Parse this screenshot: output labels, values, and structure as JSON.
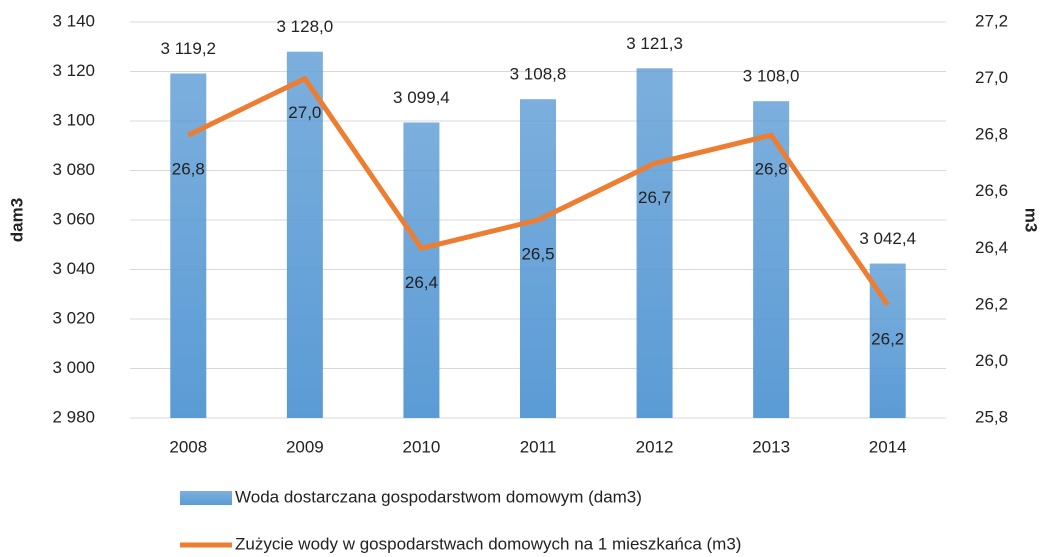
{
  "chart_data": {
    "type": "bar",
    "categories": [
      "2008",
      "2009",
      "2010",
      "2011",
      "2012",
      "2013",
      "2014"
    ],
    "series": [
      {
        "name": "Woda dostarczana gospodarstwom domowym (dam3)",
        "type": "bar",
        "color": "#5b9bd5",
        "values": [
          3119.2,
          3128.0,
          3099.4,
          3108.8,
          3121.3,
          3108.0,
          3042.4
        ],
        "value_labels": [
          "3 119,2",
          "3 128,0",
          "3 099,4",
          "3 108,8",
          "3 121,3",
          "3 108,0",
          "3 042,4"
        ]
      },
      {
        "name": "Zużycie wody w gospodarstwach domowych na 1 mieszkańca (m3)",
        "type": "line",
        "axis": "y2",
        "color": "#ed7d31",
        "values": [
          26.8,
          27.0,
          26.4,
          26.5,
          26.7,
          26.8,
          26.2
        ],
        "value_labels": [
          "26,8",
          "27,0",
          "26,4",
          "26,5",
          "26,7",
          "26,8",
          "26,2"
        ]
      }
    ],
    "ylabel": "dam3",
    "y2label": "m3",
    "ylim": [
      2980,
      3140
    ],
    "yticks": [
      {
        "value": 2980,
        "label": "2 980"
      },
      {
        "value": 3000,
        "label": "3 000"
      },
      {
        "value": 3020,
        "label": "3 020"
      },
      {
        "value": 3040,
        "label": "3 040"
      },
      {
        "value": 3060,
        "label": "3 060"
      },
      {
        "value": 3080,
        "label": "3 080"
      },
      {
        "value": 3100,
        "label": "3 100"
      },
      {
        "value": 3120,
        "label": "3 120"
      },
      {
        "value": 3140,
        "label": "3 140"
      }
    ],
    "y2lim": [
      25.8,
      27.2
    ],
    "y2ticks": [
      {
        "value": 25.8,
        "label": "25,8"
      },
      {
        "value": 26.0,
        "label": "26,0"
      },
      {
        "value": 26.2,
        "label": "26,2"
      },
      {
        "value": 26.4,
        "label": "26,4"
      },
      {
        "value": 26.6,
        "label": "26,6"
      },
      {
        "value": 26.8,
        "label": "26,8"
      },
      {
        "value": 27.0,
        "label": "27,0"
      },
      {
        "value": 27.2,
        "label": "27,2"
      }
    ],
    "grid": true,
    "legend": "bottom"
  }
}
